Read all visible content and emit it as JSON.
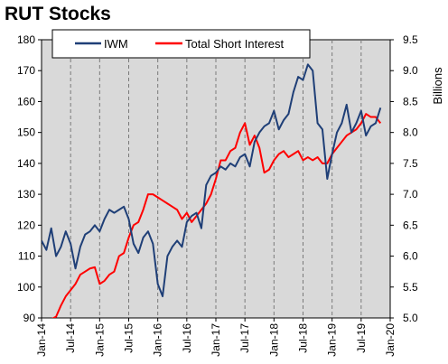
{
  "chart_data": {
    "type": "line",
    "title": "RUT Stocks",
    "xlabel": "",
    "ylabel_left": "",
    "ylabel_right": "Billions",
    "x_ticks": [
      "Jan-14",
      "Jul-14",
      "Jan-15",
      "Jul-15",
      "Jan-16",
      "Jul-16",
      "Jan-17",
      "Jul-17",
      "Jan-18",
      "Jul-18",
      "Jan-19",
      "Jul-19",
      "Jan-20"
    ],
    "xlim": [
      "2014-01",
      "2020-01"
    ],
    "y_left_ticks": [
      90,
      100,
      110,
      120,
      130,
      140,
      150,
      160,
      170,
      180
    ],
    "y_left_lim": [
      90,
      180
    ],
    "y_right_ticks": [
      "5.0",
      "5.5",
      "6.0",
      "6.5",
      "7.0",
      "7.5",
      "8.0",
      "8.5",
      "9.0",
      "9.5"
    ],
    "y_right_lim": [
      5.0,
      9.5
    ],
    "grid": "vertical dashed",
    "legend_position": "top",
    "series": [
      {
        "name": "IWM",
        "axis": "left",
        "color": "#1f3f77",
        "x": [
          "2014-01",
          "2014-02",
          "2014-03",
          "2014-04",
          "2014-05",
          "2014-06",
          "2014-07",
          "2014-08",
          "2014-09",
          "2014-10",
          "2014-11",
          "2014-12",
          "2015-01",
          "2015-02",
          "2015-03",
          "2015-04",
          "2015-05",
          "2015-06",
          "2015-07",
          "2015-08",
          "2015-09",
          "2015-10",
          "2015-11",
          "2015-12",
          "2016-01",
          "2016-02",
          "2016-03",
          "2016-04",
          "2016-05",
          "2016-06",
          "2016-07",
          "2016-08",
          "2016-09",
          "2016-10",
          "2016-11",
          "2016-12",
          "2017-01",
          "2017-02",
          "2017-03",
          "2017-04",
          "2017-05",
          "2017-06",
          "2017-07",
          "2017-08",
          "2017-09",
          "2017-10",
          "2017-11",
          "2017-12",
          "2018-01",
          "2018-02",
          "2018-03",
          "2018-04",
          "2018-05",
          "2018-06",
          "2018-07",
          "2018-08",
          "2018-09",
          "2018-10",
          "2018-11",
          "2018-12",
          "2019-01",
          "2019-02",
          "2019-03",
          "2019-04",
          "2019-05",
          "2019-06",
          "2019-07",
          "2019-08",
          "2019-09",
          "2019-10",
          "2019-11"
        ],
        "values": [
          115,
          112,
          119,
          110,
          113,
          118,
          114,
          106,
          113,
          117,
          118,
          120,
          118,
          122,
          125,
          124,
          125,
          126,
          122,
          114,
          111,
          116,
          118,
          114,
          101,
          97,
          110,
          113,
          115,
          113,
          121,
          123,
          124,
          119,
          133,
          136,
          137,
          139,
          138,
          140,
          139,
          142,
          143,
          139,
          147,
          150,
          152,
          153,
          157,
          151,
          154,
          156,
          163,
          168,
          167,
          172,
          170,
          153,
          151,
          135,
          143,
          150,
          153,
          159,
          150,
          153,
          157,
          149,
          152,
          153,
          158
        ]
      },
      {
        "name": "Total Short Interest",
        "axis": "right",
        "color": "#ff0000",
        "x": [
          "2014-01",
          "2014-02",
          "2014-03",
          "2014-04",
          "2014-05",
          "2014-06",
          "2014-07",
          "2014-08",
          "2014-09",
          "2014-10",
          "2014-11",
          "2014-12",
          "2015-01",
          "2015-02",
          "2015-03",
          "2015-04",
          "2015-05",
          "2015-06",
          "2015-07",
          "2015-08",
          "2015-09",
          "2015-10",
          "2015-11",
          "2015-12",
          "2016-01",
          "2016-02",
          "2016-03",
          "2016-04",
          "2016-05",
          "2016-06",
          "2016-07",
          "2016-08",
          "2016-09",
          "2016-10",
          "2016-11",
          "2016-12",
          "2017-01",
          "2017-02",
          "2017-03",
          "2017-04",
          "2017-05",
          "2017-06",
          "2017-07",
          "2017-08",
          "2017-09",
          "2017-10",
          "2017-11",
          "2017-12",
          "2018-01",
          "2018-02",
          "2018-03",
          "2018-04",
          "2018-05",
          "2018-06",
          "2018-07",
          "2018-08",
          "2018-09",
          "2018-10",
          "2018-11",
          "2018-12",
          "2019-01",
          "2019-02",
          "2019-03",
          "2019-04",
          "2019-05",
          "2019-06",
          "2019-07",
          "2019-08",
          "2019-09",
          "2019-10",
          "2019-11"
        ],
        "values": [
          4.9,
          4.95,
          4.98,
          5.02,
          5.2,
          5.35,
          5.45,
          5.55,
          5.7,
          5.75,
          5.8,
          5.82,
          5.55,
          5.6,
          5.7,
          5.75,
          6.0,
          6.05,
          6.3,
          6.5,
          6.55,
          6.75,
          7.0,
          7.0,
          6.95,
          6.9,
          6.85,
          6.8,
          6.75,
          6.6,
          6.7,
          6.55,
          6.65,
          6.75,
          6.85,
          7.0,
          7.25,
          7.55,
          7.55,
          7.7,
          7.75,
          8.0,
          8.15,
          7.8,
          7.95,
          7.75,
          7.35,
          7.4,
          7.55,
          7.65,
          7.7,
          7.6,
          7.65,
          7.7,
          7.55,
          7.6,
          7.55,
          7.6,
          7.5,
          7.5,
          7.65,
          7.75,
          7.85,
          7.95,
          8.0,
          8.05,
          8.15,
          8.3,
          8.25,
          8.25,
          8.15
        ]
      }
    ]
  },
  "colors": {
    "plot_background": "#d9d9d9",
    "legend_background": "#ffffff",
    "frame": "#000000"
  }
}
